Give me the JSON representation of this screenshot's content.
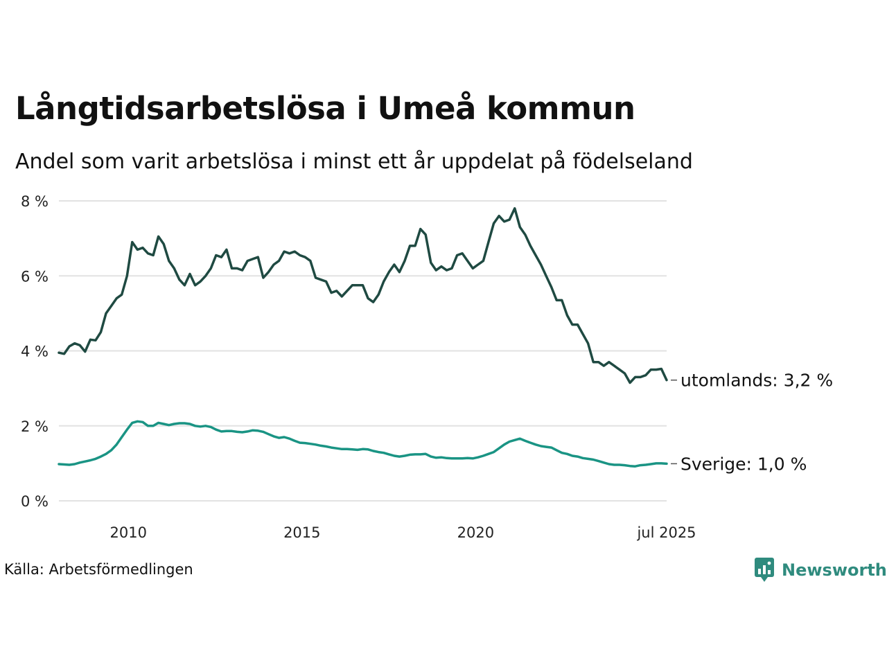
{
  "header": {
    "title": "Långtidsarbetslösa i Umeå kommun",
    "subtitle": "Andel som varit arbetslösa i minst ett år uppdelat på födelseland"
  },
  "footer": {
    "source": "Källa: Arbetsförmedlingen",
    "brand": "Newsworthy"
  },
  "chart_data": {
    "type": "line",
    "x_start": "2008-01",
    "x_step": "2 months",
    "x_end": "2025-07",
    "xlim": [
      2008.0,
      2025.5
    ],
    "ylim": [
      0,
      8
    ],
    "y_ticks": [
      0,
      2,
      4,
      6,
      8
    ],
    "y_tick_labels": [
      "0 %",
      "2 %",
      "4 %",
      "6 %",
      "8 %"
    ],
    "x_ticks": [
      2010,
      2015,
      2020,
      2025.5
    ],
    "x_tick_labels": [
      "2010",
      "2015",
      "2020",
      "jul 2025"
    ],
    "grid": "horizontal",
    "series": [
      {
        "name": "utomlands",
        "end_label": "utomlands: 3,2 %",
        "color": "#1f4a42",
        "values": [
          3.95,
          3.92,
          4.12,
          4.2,
          4.15,
          3.98,
          4.3,
          4.28,
          4.5,
          5.0,
          5.2,
          5.4,
          5.5,
          6.0,
          6.9,
          6.7,
          6.75,
          6.6,
          6.55,
          7.05,
          6.85,
          6.4,
          6.2,
          5.9,
          5.75,
          6.05,
          5.75,
          5.85,
          6.0,
          6.2,
          6.55,
          6.5,
          6.7,
          6.2,
          6.2,
          6.15,
          6.4,
          6.45,
          6.5,
          5.95,
          6.1,
          6.3,
          6.4,
          6.65,
          6.6,
          6.65,
          6.55,
          6.5,
          6.4,
          5.95,
          5.9,
          5.85,
          5.55,
          5.6,
          5.45,
          5.6,
          5.75,
          5.75,
          5.75,
          5.4,
          5.3,
          5.5,
          5.85,
          6.1,
          6.3,
          6.1,
          6.4,
          6.8,
          6.8,
          7.25,
          7.1,
          6.35,
          6.15,
          6.25,
          6.15,
          6.2,
          6.55,
          6.6,
          6.4,
          6.2,
          6.3,
          6.4,
          6.9,
          7.4,
          7.6,
          7.45,
          7.5,
          7.8,
          7.3,
          7.1,
          6.8,
          6.55,
          6.3,
          6.0,
          5.7,
          5.35,
          5.35,
          4.95,
          4.7,
          4.7,
          4.45,
          4.2,
          3.7,
          3.7,
          3.6,
          3.7,
          3.6,
          3.5,
          3.4,
          3.15,
          3.3,
          3.3,
          3.35,
          3.5,
          3.5,
          3.52,
          3.22
        ]
      },
      {
        "name": "Sverige",
        "end_label": "Sverige: 1,0 %",
        "color": "#1a9484",
        "values": [
          0.98,
          0.97,
          0.96,
          0.98,
          1.02,
          1.05,
          1.08,
          1.12,
          1.18,
          1.25,
          1.35,
          1.5,
          1.7,
          1.9,
          2.08,
          2.12,
          2.1,
          2.0,
          2.0,
          2.08,
          2.05,
          2.02,
          2.05,
          2.07,
          2.07,
          2.05,
          2.0,
          1.98,
          2.0,
          1.97,
          1.9,
          1.85,
          1.86,
          1.86,
          1.84,
          1.83,
          1.85,
          1.88,
          1.87,
          1.84,
          1.78,
          1.72,
          1.68,
          1.7,
          1.66,
          1.6,
          1.55,
          1.54,
          1.52,
          1.5,
          1.47,
          1.45,
          1.42,
          1.4,
          1.38,
          1.38,
          1.37,
          1.36,
          1.38,
          1.37,
          1.33,
          1.3,
          1.28,
          1.24,
          1.2,
          1.18,
          1.2,
          1.23,
          1.24,
          1.24,
          1.25,
          1.18,
          1.15,
          1.16,
          1.14,
          1.13,
          1.13,
          1.13,
          1.14,
          1.13,
          1.16,
          1.2,
          1.25,
          1.3,
          1.4,
          1.5,
          1.58,
          1.62,
          1.66,
          1.6,
          1.55,
          1.5,
          1.46,
          1.44,
          1.42,
          1.35,
          1.28,
          1.25,
          1.2,
          1.18,
          1.14,
          1.12,
          1.1,
          1.06,
          1.02,
          0.98,
          0.96,
          0.96,
          0.95,
          0.93,
          0.92,
          0.95,
          0.96,
          0.98,
          1.0,
          1.0,
          0.99
        ]
      }
    ]
  }
}
